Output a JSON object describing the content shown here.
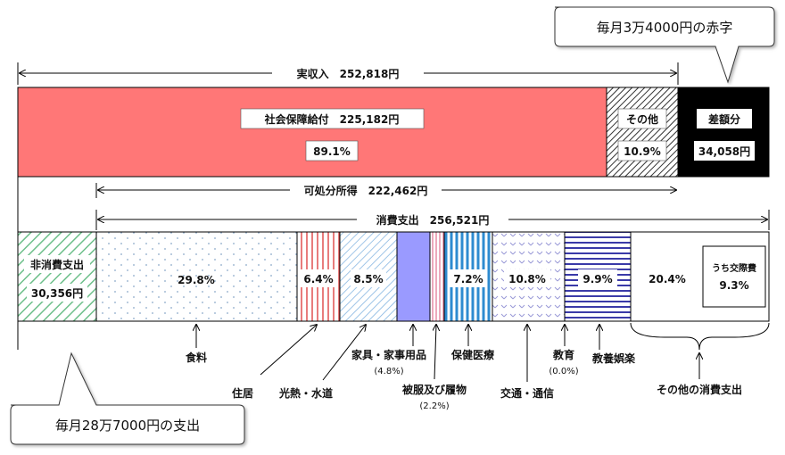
{
  "callouts": {
    "deficit": "毎月3万4000円の赤字",
    "spending": "毎月28万7000円の支出"
  },
  "income": {
    "actual_income": "実収入　252,818円",
    "social_security": "社会保障給付　225,182円",
    "social_security_pct": "89.1%",
    "other": "その他",
    "other_pct": "10.9%",
    "difference": "差額分",
    "difference_value": "34,058円"
  },
  "disposable": "可処分所得　222,462円",
  "consumption": "消費支出　256,521円",
  "expenses": {
    "non_consumption": "非消費支出",
    "non_consumption_value": "30,356円",
    "food_pct": "29.8%",
    "housing_pct": "6.4%",
    "utilities_pct": "8.5%",
    "medical_pct": "7.2%",
    "transport_pct": "10.8%",
    "recreation_pct": "9.9%",
    "other_pct": "20.4%",
    "social_expense": "うち交際費",
    "social_expense_pct": "9.3%"
  },
  "labels": {
    "food": "食料",
    "housing": "住居",
    "utilities": "光熱・水道",
    "furniture": "家具・家事用品",
    "furniture_pct": "(4.8%)",
    "clothing": "被服及び履物",
    "clothing_pct": "(2.2%)",
    "medical": "保健医療",
    "transport": "交通・通信",
    "education": "教育",
    "education_pct": "(0.0%)",
    "recreation": "教養娯楽",
    "other_consumption": "その他の消費支出"
  },
  "colors": {
    "social_security": "#ff7777",
    "difference": "#000000",
    "non_consumption": "#6dbf8a",
    "housing": "#e05050",
    "utilities": "#7fb2e0",
    "furniture": "#9a9aff",
    "clothing": "#e07090",
    "medical": "#2e8bd0",
    "transport": "#9a9ad8",
    "recreation": "#3a3aa8"
  }
}
